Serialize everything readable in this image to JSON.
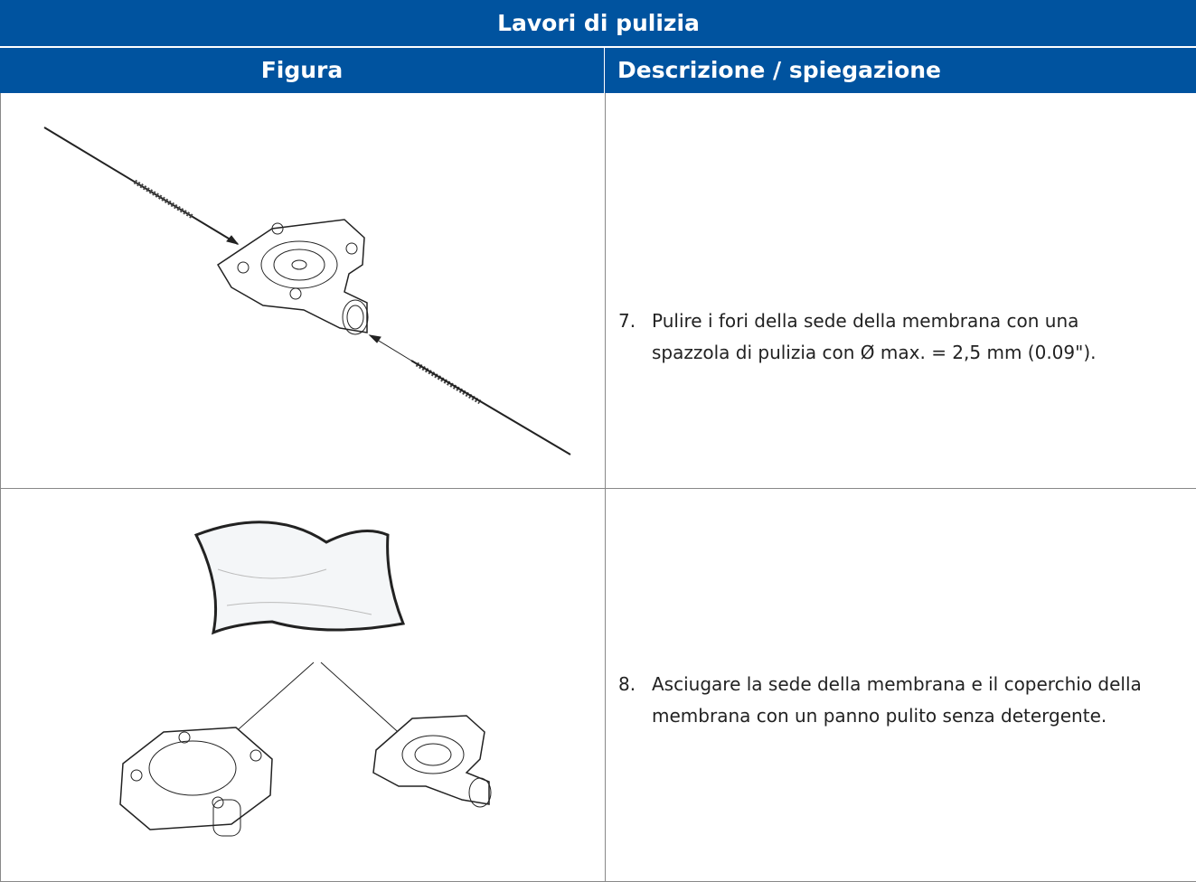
{
  "header": {
    "title": "Lavori di pulizia"
  },
  "table": {
    "columns": [
      "Figura",
      "Descrizione / spiegazione"
    ],
    "rows": [
      {
        "step": "7.",
        "lines": [
          "Pulire i fori della sede della membrana con una",
          "spazzola di pulizia con Ø max. = 2,5 mm (0.09\")."
        ]
      },
      {
        "step": "8.",
        "lines": [
          "Asciugare la sede della membrana e il coperchio della",
          "membrana con un panno pulito senza detergente."
        ]
      }
    ]
  }
}
